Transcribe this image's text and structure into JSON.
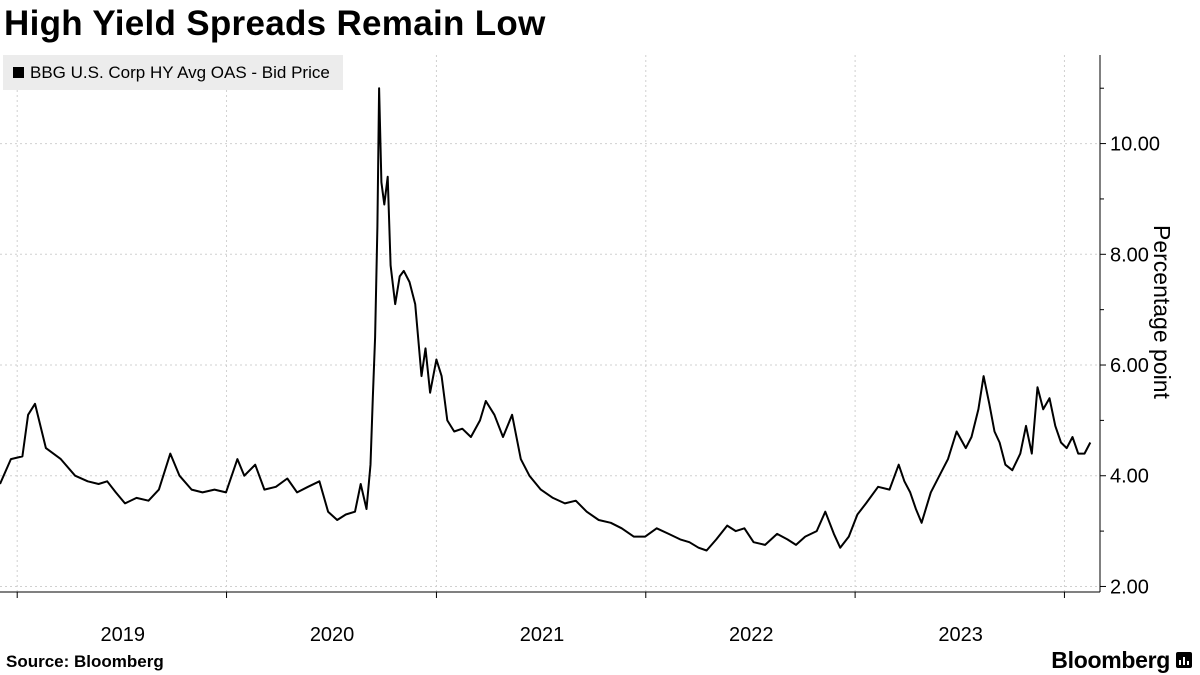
{
  "page": {
    "title": "High Yield Spreads Remain Low",
    "source": "Source: Bloomberg",
    "brand": "Bloomberg"
  },
  "colors": {
    "line": "#000000",
    "grid": "#d0d0d0",
    "legend_bg": "#ececec"
  },
  "chart_data": {
    "type": "line",
    "title": "High Yield Spreads Remain Low",
    "ylabel": "Percentage point",
    "xlabel": "",
    "y_axis_position": "right",
    "grid": "dotted",
    "legend_placement": "top-left",
    "x_tick_labels": [
      "2019",
      "2020",
      "2021",
      "2022",
      "2023"
    ],
    "y_tick_labels": [
      "2.00",
      "4.00",
      "6.00",
      "8.00",
      "10.00"
    ],
    "y_ticks": [
      2,
      4,
      6,
      8,
      10
    ],
    "ylim": [
      1.9,
      11.6
    ],
    "xlim": [
      "2018-06-01",
      "2023-09-01"
    ],
    "series": [
      {
        "name": "BBG U.S. Corp HY Avg OAS - Bid Price",
        "points": [
          [
            "2018-06-01",
            3.85
          ],
          [
            "2018-06-20",
            4.3
          ],
          [
            "2018-07-10",
            4.35
          ],
          [
            "2018-07-20",
            5.1
          ],
          [
            "2018-08-01",
            5.3
          ],
          [
            "2018-08-20",
            4.5
          ],
          [
            "2018-09-15",
            4.3
          ],
          [
            "2018-10-10",
            4.0
          ],
          [
            "2018-11-01",
            3.9
          ],
          [
            "2018-11-20",
            3.85
          ],
          [
            "2018-12-05",
            3.9
          ],
          [
            "2018-12-20",
            3.7
          ],
          [
            "2019-01-05",
            3.5
          ],
          [
            "2019-01-25",
            3.6
          ],
          [
            "2019-02-15",
            3.55
          ],
          [
            "2019-03-05",
            3.75
          ],
          [
            "2019-03-25",
            4.4
          ],
          [
            "2019-04-10",
            4.0
          ],
          [
            "2019-05-01",
            3.75
          ],
          [
            "2019-05-20",
            3.7
          ],
          [
            "2019-06-10",
            3.75
          ],
          [
            "2019-06-30",
            3.7
          ],
          [
            "2019-07-20",
            4.3
          ],
          [
            "2019-08-01",
            4.0
          ],
          [
            "2019-08-20",
            4.2
          ],
          [
            "2019-09-05",
            3.75
          ],
          [
            "2019-09-25",
            3.8
          ],
          [
            "2019-10-15",
            3.95
          ],
          [
            "2019-11-01",
            3.7
          ],
          [
            "2019-11-20",
            3.8
          ],
          [
            "2019-12-10",
            3.9
          ],
          [
            "2019-12-25",
            3.35
          ],
          [
            "2020-01-10",
            3.2
          ],
          [
            "2020-01-25",
            3.3
          ],
          [
            "2020-02-10",
            3.35
          ],
          [
            "2020-02-20",
            3.85
          ],
          [
            "2020-03-01",
            3.4
          ],
          [
            "2020-03-08",
            4.2
          ],
          [
            "2020-03-12",
            5.4
          ],
          [
            "2020-03-16",
            6.5
          ],
          [
            "2020-03-20",
            8.5
          ],
          [
            "2020-03-23",
            11.0
          ],
          [
            "2020-03-27",
            9.3
          ],
          [
            "2020-04-01",
            8.9
          ],
          [
            "2020-04-07",
            9.4
          ],
          [
            "2020-04-12",
            7.8
          ],
          [
            "2020-04-20",
            7.1
          ],
          [
            "2020-04-28",
            7.6
          ],
          [
            "2020-05-05",
            7.7
          ],
          [
            "2020-05-15",
            7.5
          ],
          [
            "2020-05-25",
            7.1
          ],
          [
            "2020-06-05",
            5.8
          ],
          [
            "2020-06-12",
            6.3
          ],
          [
            "2020-06-20",
            5.5
          ],
          [
            "2020-07-01",
            6.1
          ],
          [
            "2020-07-10",
            5.8
          ],
          [
            "2020-07-20",
            5.0
          ],
          [
            "2020-08-01",
            4.8
          ],
          [
            "2020-08-15",
            4.85
          ],
          [
            "2020-08-30",
            4.7
          ],
          [
            "2020-09-15",
            5.0
          ],
          [
            "2020-09-25",
            5.35
          ],
          [
            "2020-10-10",
            5.1
          ],
          [
            "2020-10-25",
            4.7
          ],
          [
            "2020-11-10",
            5.1
          ],
          [
            "2020-11-25",
            4.3
          ],
          [
            "2020-12-10",
            4.0
          ],
          [
            "2020-12-30",
            3.75
          ],
          [
            "2021-01-20",
            3.6
          ],
          [
            "2021-02-10",
            3.5
          ],
          [
            "2021-03-01",
            3.55
          ],
          [
            "2021-03-20",
            3.35
          ],
          [
            "2021-04-10",
            3.2
          ],
          [
            "2021-05-01",
            3.15
          ],
          [
            "2021-05-20",
            3.05
          ],
          [
            "2021-06-10",
            2.9
          ],
          [
            "2021-06-30",
            2.9
          ],
          [
            "2021-07-20",
            3.05
          ],
          [
            "2021-08-10",
            2.95
          ],
          [
            "2021-08-30",
            2.85
          ],
          [
            "2021-09-15",
            2.8
          ],
          [
            "2021-10-01",
            2.7
          ],
          [
            "2021-10-15",
            2.65
          ],
          [
            "2021-11-01",
            2.85
          ],
          [
            "2021-11-20",
            3.1
          ],
          [
            "2021-12-05",
            3.0
          ],
          [
            "2021-12-20",
            3.05
          ],
          [
            "2022-01-05",
            2.8
          ],
          [
            "2022-01-25",
            2.75
          ],
          [
            "2022-02-15",
            2.95
          ],
          [
            "2022-03-05",
            2.85
          ],
          [
            "2022-03-20",
            2.75
          ],
          [
            "2022-04-05",
            2.9
          ],
          [
            "2022-04-25",
            3.0
          ],
          [
            "2022-05-10",
            3.35
          ],
          [
            "2022-05-25",
            2.95
          ],
          [
            "2022-06-05",
            2.7
          ],
          [
            "2022-06-20",
            2.9
          ],
          [
            "2022-07-05",
            3.3
          ],
          [
            "2022-07-20",
            3.5
          ],
          [
            "2022-08-10",
            3.8
          ],
          [
            "2022-08-30",
            3.75
          ],
          [
            "2022-09-15",
            4.2
          ],
          [
            "2022-09-25",
            3.9
          ],
          [
            "2022-10-05",
            3.7
          ],
          [
            "2022-10-15",
            3.4
          ],
          [
            "2022-10-25",
            3.15
          ],
          [
            "2022-11-10",
            3.7
          ],
          [
            "2022-11-25",
            4.0
          ],
          [
            "2022-12-10",
            4.3
          ],
          [
            "2022-12-25",
            4.8
          ],
          [
            "2023-01-10",
            4.5
          ],
          [
            "2023-01-20",
            4.7
          ],
          [
            "2023-02-01",
            5.2
          ],
          [
            "2023-02-10",
            5.8
          ],
          [
            "2023-02-20",
            5.3
          ],
          [
            "2023-03-01",
            4.8
          ],
          [
            "2023-03-10",
            4.6
          ],
          [
            "2023-03-20",
            4.2
          ],
          [
            "2023-04-01",
            4.1
          ],
          [
            "2023-04-15",
            4.4
          ],
          [
            "2023-04-25",
            4.9
          ],
          [
            "2023-05-05",
            4.4
          ],
          [
            "2023-05-15",
            5.6
          ],
          [
            "2023-05-25",
            5.2
          ],
          [
            "2023-06-05",
            5.4
          ],
          [
            "2023-06-15",
            4.9
          ],
          [
            "2023-06-25",
            4.6
          ],
          [
            "2023-07-05",
            4.5
          ],
          [
            "2023-07-15",
            4.7
          ],
          [
            "2023-07-25",
            4.4
          ],
          [
            "2023-08-05",
            4.4
          ],
          [
            "2023-08-15",
            4.6
          ]
        ]
      }
    ]
  }
}
